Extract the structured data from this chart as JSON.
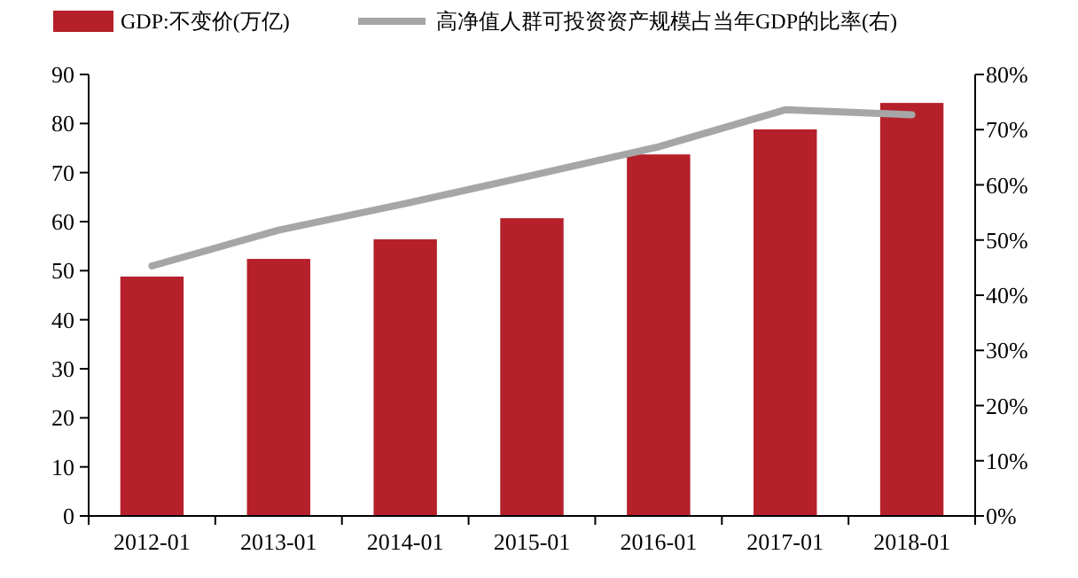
{
  "chart_data": {
    "type": "bar",
    "categories": [
      "2012-01",
      "2013-01",
      "2014-01",
      "2015-01",
      "2016-01",
      "2017-01",
      "2018-01"
    ],
    "series": [
      {
        "name": "GDP:不变价(万亿)",
        "color": "#b5202b",
        "values": [
          48.8,
          52.4,
          56.4,
          60.7,
          73.7,
          78.8,
          84.2
        ]
      },
      {
        "name": "高净值人群可投资资产规模占当年GDP的比率(右)",
        "type": "line",
        "axis": "y2",
        "color": "#a6a6a6",
        "values": [
          45.3,
          51.8,
          56.6,
          61.7,
          66.9,
          73.6,
          72.7
        ]
      }
    ],
    "ylim": [
      0,
      90
    ],
    "yticks": [
      0,
      10,
      20,
      30,
      40,
      50,
      60,
      70,
      80,
      90
    ],
    "y2lim": [
      0,
      80
    ],
    "y2ticks": [
      {
        "value": 0,
        "label": "0%"
      },
      {
        "value": 10,
        "label": "10%"
      },
      {
        "value": 20,
        "label": "20%"
      },
      {
        "value": 30,
        "label": "30%"
      },
      {
        "value": 40,
        "label": "40%"
      },
      {
        "value": 50,
        "label": "50%"
      },
      {
        "value": 60,
        "label": "60%"
      },
      {
        "value": 70,
        "label": "70%"
      },
      {
        "value": 80,
        "label": "80%"
      }
    ],
    "legend": "top",
    "grid": false,
    "marker": "none",
    "line_style": "solid"
  }
}
